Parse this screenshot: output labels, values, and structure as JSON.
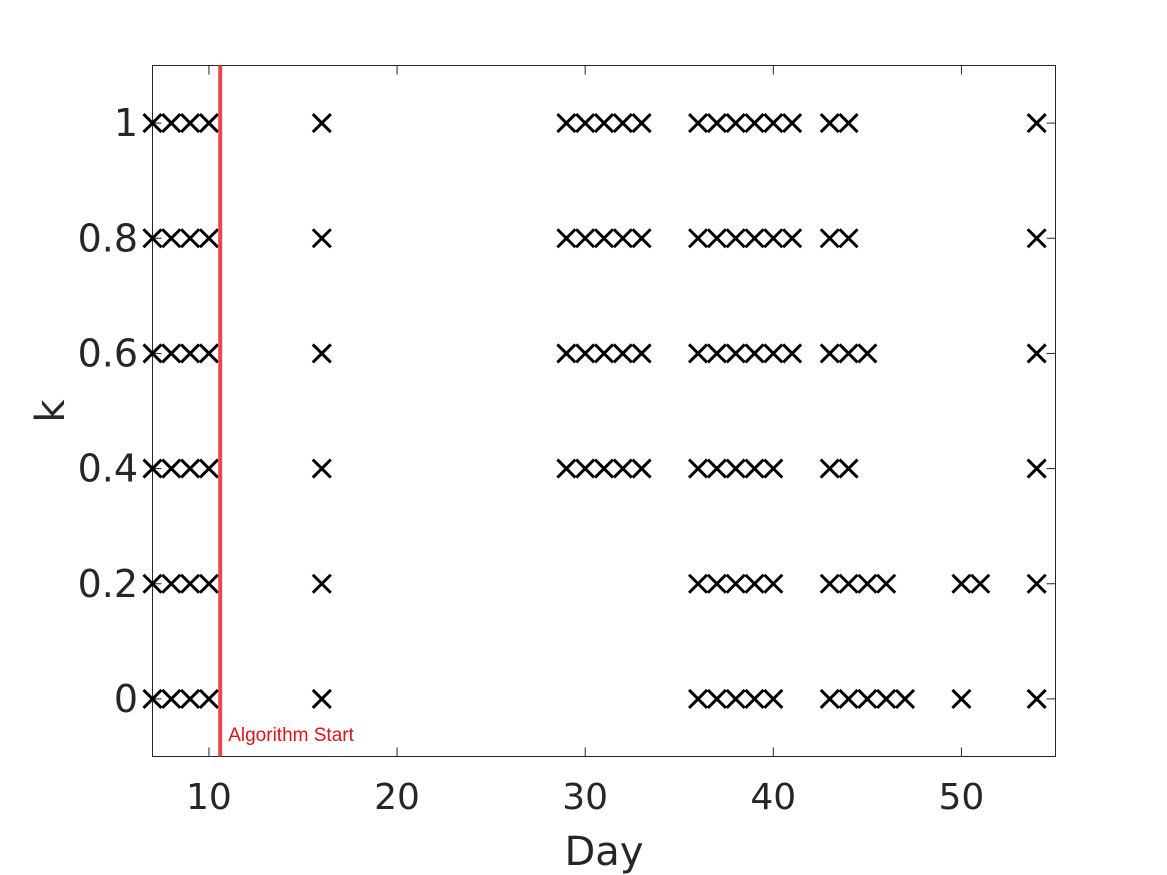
{
  "chart_data": {
    "type": "scatter",
    "xlabel": "Day",
    "ylabel": "k",
    "xlim": [
      7,
      55
    ],
    "ylim": [
      -0.1,
      1.1
    ],
    "xticks": [
      10,
      20,
      30,
      40,
      50
    ],
    "yticks": [
      0,
      0.2,
      0.4,
      0.6,
      0.8,
      1
    ],
    "ytick_labels": [
      "0",
      "0.2",
      "0.4",
      "0.6",
      "0.8",
      "1"
    ],
    "grid": false,
    "marker": "x",
    "marker_color": "#000000",
    "series": [
      {
        "y": 1,
        "x": [
          7,
          8,
          9,
          10,
          16,
          29,
          30,
          31,
          32,
          33,
          36,
          37,
          38,
          39,
          40,
          41,
          43,
          44,
          54
        ]
      },
      {
        "y": 0.8,
        "x": [
          7,
          8,
          9,
          10,
          16,
          29,
          30,
          31,
          32,
          33,
          36,
          37,
          38,
          39,
          40,
          41,
          43,
          44,
          54
        ]
      },
      {
        "y": 0.6,
        "x": [
          7,
          8,
          9,
          10,
          16,
          29,
          30,
          31,
          32,
          33,
          36,
          37,
          38,
          39,
          40,
          41,
          43,
          44,
          45,
          54
        ]
      },
      {
        "y": 0.4,
        "x": [
          7,
          8,
          9,
          10,
          16,
          29,
          30,
          31,
          32,
          33,
          36,
          37,
          38,
          39,
          40,
          43,
          44,
          54
        ]
      },
      {
        "y": 0.2,
        "x": [
          7,
          8,
          9,
          10,
          16,
          36,
          37,
          38,
          39,
          40,
          43,
          44,
          45,
          46,
          50,
          51,
          54
        ]
      },
      {
        "y": 0,
        "x": [
          7,
          8,
          9,
          10,
          16,
          36,
          37,
          38,
          39,
          40,
          43,
          44,
          45,
          46,
          47,
          50,
          54
        ]
      }
    ],
    "annotations": [
      {
        "type": "vline",
        "x": 10.6,
        "color": "#e8474b",
        "text": "Algorithm Start",
        "text_color": "#d9141b"
      }
    ]
  }
}
